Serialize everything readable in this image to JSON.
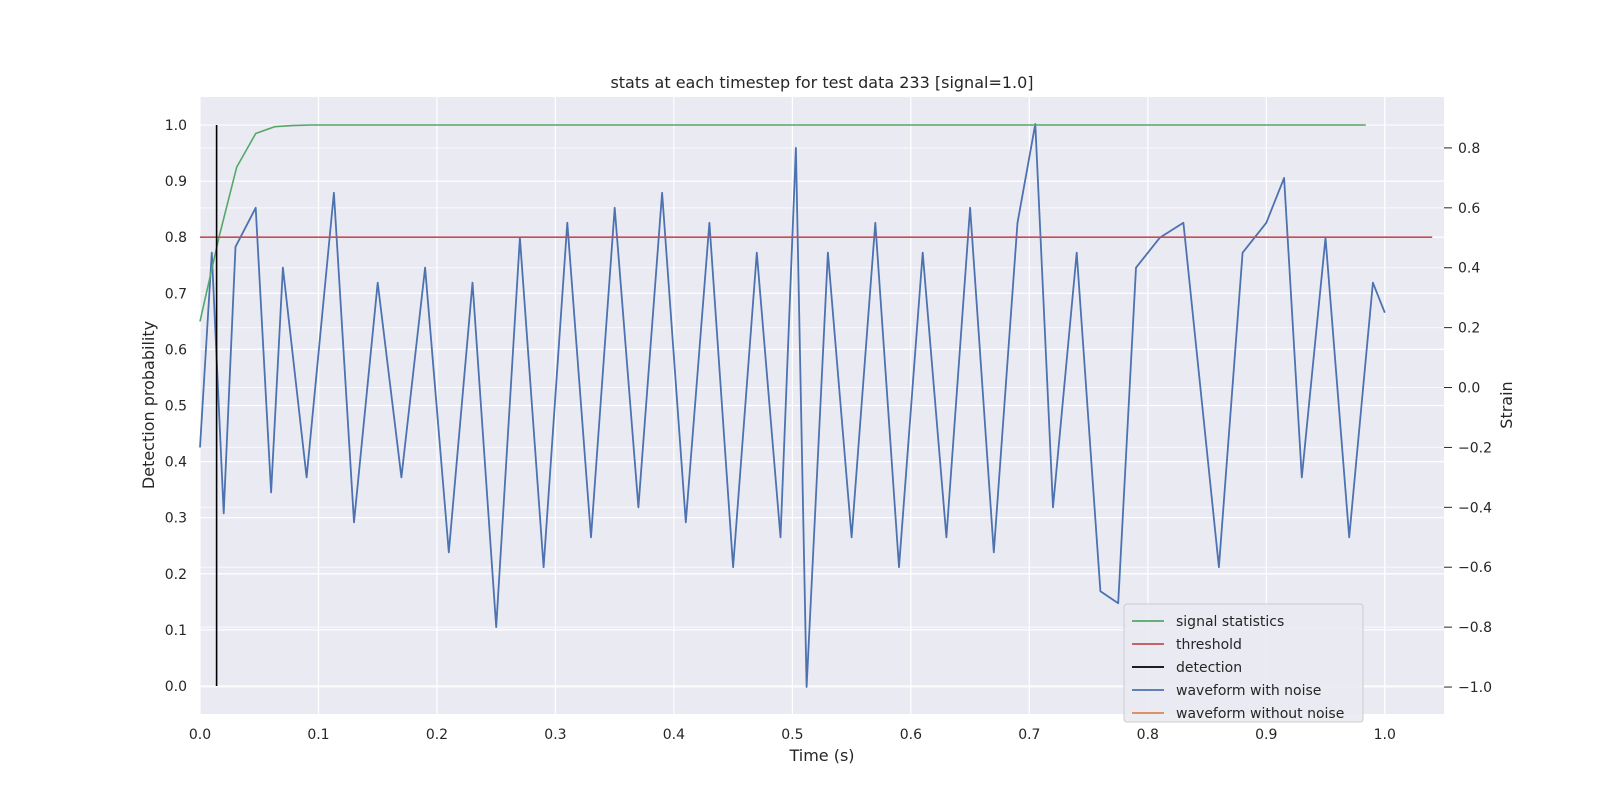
{
  "chart_data": {
    "type": "line",
    "title": "stats at each timestep for test data 233 [signal=1.0]",
    "xlabel": "Time (s)",
    "ylabel_left": "Detection probability",
    "ylabel_right": "Strain",
    "xlim": [
      0.0,
      1.05
    ],
    "ylim_left": [
      -0.05,
      1.05
    ],
    "ylim_right": [
      -1.09,
      0.97
    ],
    "x_ticks": [
      "0.0",
      "0.1",
      "0.2",
      "0.3",
      "0.4",
      "0.5",
      "0.6",
      "0.7",
      "0.8",
      "0.9",
      "1.0"
    ],
    "y_left_ticks": [
      "0.0",
      "0.1",
      "0.2",
      "0.3",
      "0.4",
      "0.5",
      "0.6",
      "0.7",
      "0.8",
      "0.9",
      "1.0"
    ],
    "y_right_ticks": [
      "−1.0",
      "−0.8",
      "−0.6",
      "−0.4",
      "−0.2",
      "0.0",
      "0.2",
      "0.4",
      "0.6",
      "0.8"
    ],
    "grid": true,
    "legend_position": "lower-right",
    "series": [
      {
        "name": "signal statistics",
        "color": "#55a868",
        "axis": "left",
        "x": [
          0.0,
          0.016,
          0.031,
          0.047,
          0.063,
          0.078,
          0.094,
          0.2,
          0.4,
          0.6,
          0.8,
          0.984
        ],
        "values": [
          0.65,
          0.8,
          0.925,
          0.985,
          0.997,
          0.999,
          1.0,
          1.0,
          1.0,
          1.0,
          1.0,
          1.0
        ]
      },
      {
        "name": "threshold",
        "color": "#c44e52",
        "axis": "left",
        "x": [
          0.0,
          1.04
        ],
        "values": [
          0.8,
          0.8
        ]
      },
      {
        "name": "detection",
        "color": "#000000",
        "axis": "left",
        "x": [
          0.014,
          0.014
        ],
        "values": [
          0.0,
          1.0
        ]
      },
      {
        "name": "waveform with noise",
        "color": "#4c72b0",
        "axis": "right",
        "x": [
          0.0,
          0.01,
          0.02,
          0.03,
          0.047,
          0.06,
          0.07,
          0.09,
          0.113,
          0.13,
          0.15,
          0.17,
          0.19,
          0.21,
          0.23,
          0.25,
          0.27,
          0.29,
          0.31,
          0.33,
          0.35,
          0.37,
          0.39,
          0.41,
          0.43,
          0.45,
          0.47,
          0.49,
          0.503,
          0.512,
          0.53,
          0.55,
          0.57,
          0.59,
          0.61,
          0.63,
          0.65,
          0.67,
          0.69,
          0.705,
          0.72,
          0.74,
          0.76,
          0.775,
          0.79,
          0.81,
          0.83,
          0.86,
          0.88,
          0.9,
          0.915,
          0.93,
          0.95,
          0.97,
          0.99,
          1.0
        ],
        "values": [
          -0.2,
          0.45,
          -0.42,
          0.47,
          0.6,
          -0.35,
          0.4,
          -0.3,
          0.65,
          -0.45,
          0.35,
          -0.3,
          0.4,
          -0.55,
          0.35,
          -0.8,
          0.5,
          -0.6,
          0.55,
          -0.5,
          0.6,
          -0.4,
          0.65,
          -0.45,
          0.55,
          -0.6,
          0.45,
          -0.5,
          0.8,
          -1.0,
          0.45,
          -0.5,
          0.55,
          -0.6,
          0.45,
          -0.5,
          0.6,
          -0.55,
          0.55,
          0.88,
          -0.4,
          0.45,
          -0.68,
          -0.72,
          0.4,
          0.5,
          0.55,
          -0.6,
          0.45,
          0.55,
          0.7,
          -0.3,
          0.5,
          -0.5,
          0.35,
          0.25
        ]
      },
      {
        "name": "waveform without noise",
        "color": "#dd8452",
        "axis": "right",
        "x": [],
        "values": []
      }
    ]
  }
}
